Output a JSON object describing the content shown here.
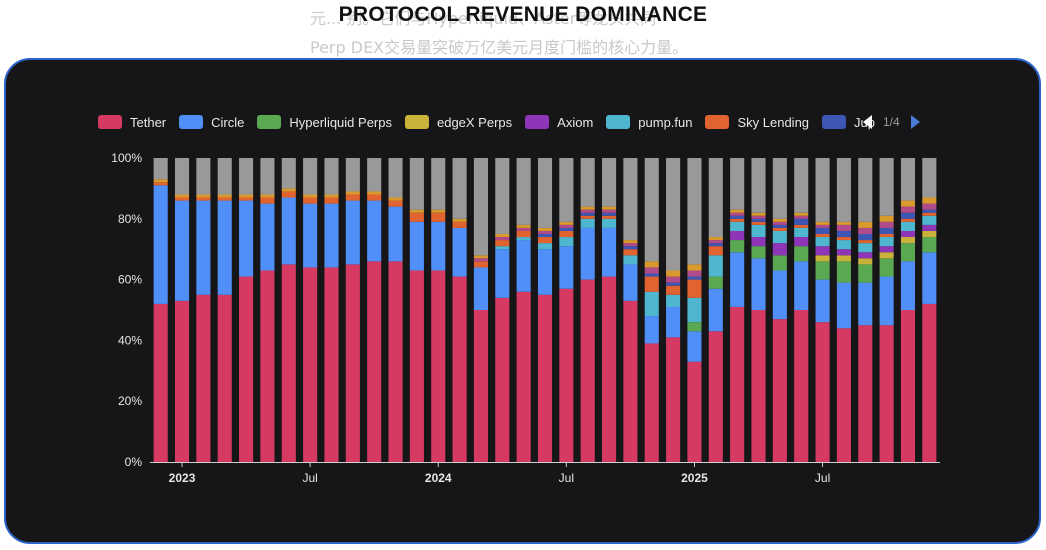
{
  "background_text": {
    "line1": "元... 别。它们与Hyperliquid、Aster等龙头共同",
    "line2": "Perp DEX交易量突破万亿美元月度门槛的核心力量。"
  },
  "legend": {
    "items": [
      {
        "label": "Tether",
        "color": "#d63a62"
      },
      {
        "label": "Circle",
        "color": "#4f8ff7"
      },
      {
        "label": "Hyperliquid Perps",
        "color": "#5aa852"
      },
      {
        "label": "edgeX Perps",
        "color": "#c9b13a"
      },
      {
        "label": "Axiom",
        "color": "#8e35b8"
      },
      {
        "label": "pump.fun",
        "color": "#4fb6cf"
      },
      {
        "label": "Sky Lending",
        "color": "#e1632f"
      },
      {
        "label": "Jup",
        "color": "#3e56b4"
      }
    ],
    "page": "1/4"
  },
  "chart_data": {
    "type": "bar",
    "stacked": true,
    "title": "PROTOCOL REVENUE DOMINANCE",
    "xlabel": "",
    "ylabel": "",
    "ylim": [
      0,
      100
    ],
    "y_ticks": [
      "0%",
      "20%",
      "40%",
      "60%",
      "80%",
      "100%"
    ],
    "x_tick_labels": [
      {
        "label": "2023",
        "index": 1
      },
      {
        "label": "Jul",
        "index": 7
      },
      {
        "label": "2024",
        "index": 13
      },
      {
        "label": "Jul",
        "index": 19
      },
      {
        "label": "2025",
        "index": 25
      },
      {
        "label": "Jul",
        "index": 31
      }
    ],
    "bar_count": 37,
    "other_color": "#999999",
    "series": [
      {
        "name": "Tether",
        "color": "#d63a62",
        "values": [
          52,
          53,
          55,
          55,
          61,
          63,
          65,
          64,
          64,
          65,
          66,
          66,
          63,
          63,
          61,
          50,
          54,
          56,
          55,
          57,
          60,
          61,
          53,
          39,
          41,
          33,
          43,
          51,
          50,
          47,
          50,
          46,
          44,
          45,
          45,
          50,
          52
        ]
      },
      {
        "name": "Circle",
        "color": "#4f8ff7",
        "values": [
          39,
          33,
          31,
          31,
          25,
          22,
          22,
          21,
          21,
          21,
          20,
          18,
          16,
          16,
          16,
          14,
          16,
          17,
          15,
          14,
          17,
          16,
          12,
          9,
          10,
          10,
          14,
          18,
          17,
          16,
          16,
          14,
          15,
          14,
          16,
          16,
          17
        ]
      },
      {
        "name": "Hyperliquid Perps",
        "color": "#5aa852",
        "values": [
          0,
          0,
          0,
          0,
          0,
          0,
          0,
          0,
          0,
          0,
          0,
          0,
          0,
          0,
          0,
          0,
          0,
          0,
          0,
          0,
          0,
          0,
          0,
          0,
          0,
          3,
          4,
          4,
          4,
          5,
          5,
          6,
          7,
          6,
          6,
          6,
          5
        ]
      },
      {
        "name": "edgeX Perps",
        "color": "#c9b13a",
        "values": [
          0,
          0,
          0,
          0,
          0,
          0,
          0,
          0,
          0,
          0,
          0,
          0,
          0,
          0,
          0,
          0,
          0,
          0,
          0,
          0,
          0,
          0,
          0,
          0,
          0,
          0,
          0,
          0,
          0,
          0,
          0,
          2,
          2,
          2,
          2,
          2,
          2
        ]
      },
      {
        "name": "Axiom",
        "color": "#8e35b8",
        "values": [
          0,
          0,
          0,
          0,
          0,
          0,
          0,
          0,
          0,
          0,
          0,
          0,
          0,
          0,
          0,
          0,
          0,
          0,
          0,
          0,
          0,
          0,
          0,
          0,
          0,
          0,
          0,
          3,
          3,
          4,
          3,
          3,
          2,
          2,
          2,
          2,
          2
        ]
      },
      {
        "name": "pump.fun",
        "color": "#4fb6cf",
        "values": [
          0,
          0,
          0,
          0,
          0,
          0,
          0,
          0,
          0,
          0,
          0,
          0,
          0,
          0,
          0,
          0,
          1,
          1,
          2,
          3,
          3,
          3,
          3,
          8,
          4,
          8,
          7,
          3,
          4,
          4,
          3,
          3,
          3,
          3,
          3,
          3,
          3
        ]
      },
      {
        "name": "Sky Lending",
        "color": "#e1632f",
        "values": [
          1,
          1,
          1,
          1,
          1,
          2,
          2,
          2,
          2,
          2,
          2,
          2,
          3,
          3,
          2,
          2,
          2,
          2,
          2,
          2,
          1,
          1,
          2,
          5,
          3,
          6,
          3,
          1,
          1,
          1,
          1,
          1,
          1,
          1,
          1,
          1,
          1
        ]
      },
      {
        "name": "Jup",
        "color": "#3e56b4",
        "values": [
          0,
          0,
          0,
          0,
          0,
          0,
          0,
          0,
          0,
          0,
          0,
          0,
          0,
          0,
          0,
          0,
          0,
          0,
          1,
          1,
          1,
          1,
          1,
          1,
          1,
          1,
          1,
          1,
          1,
          1,
          2,
          2,
          2,
          2,
          2,
          2,
          1
        ]
      },
      {
        "name": "",
        "color": "#b24b8a",
        "values": [
          0,
          0,
          0,
          0,
          0,
          0,
          0,
          0,
          0,
          0,
          0,
          0,
          0,
          0,
          0,
          1,
          1,
          1,
          1,
          1,
          1,
          1,
          1,
          2,
          2,
          2,
          1,
          1,
          1,
          1,
          1,
          1,
          2,
          2,
          2,
          2,
          2
        ]
      },
      {
        "name": "",
        "color": "#d89a2c",
        "values": [
          1,
          1,
          1,
          1,
          1,
          1,
          1,
          1,
          1,
          1,
          1,
          1,
          1,
          1,
          1,
          1,
          1,
          1,
          1,
          1,
          1,
          1,
          1,
          2,
          2,
          2,
          1,
          1,
          1,
          1,
          1,
          1,
          1,
          2,
          2,
          2,
          2
        ]
      }
    ]
  }
}
